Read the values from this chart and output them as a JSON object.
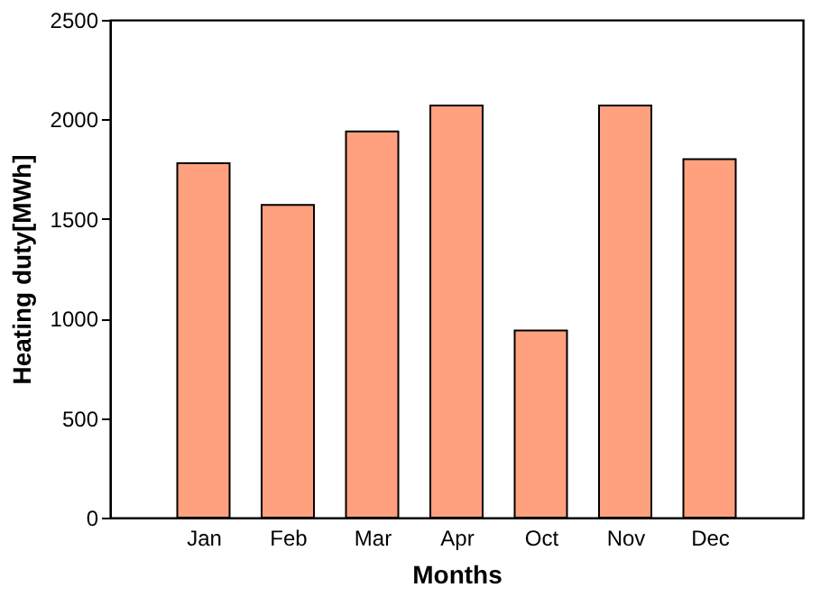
{
  "chart_data": {
    "type": "bar",
    "xlabel": "Months",
    "ylabel": "Heating duty[MWh]",
    "categories": [
      "Jan",
      "Feb",
      "Mar",
      "Apr",
      "Oct",
      "Nov",
      "Dec"
    ],
    "values": [
      1780,
      1570,
      1940,
      2070,
      940,
      2070,
      1800
    ],
    "color": "#ffa07f",
    "ylim": [
      0,
      2500
    ],
    "yticks": [
      0,
      500,
      1000,
      1500,
      2000,
      2500
    ],
    "grid": false
  }
}
